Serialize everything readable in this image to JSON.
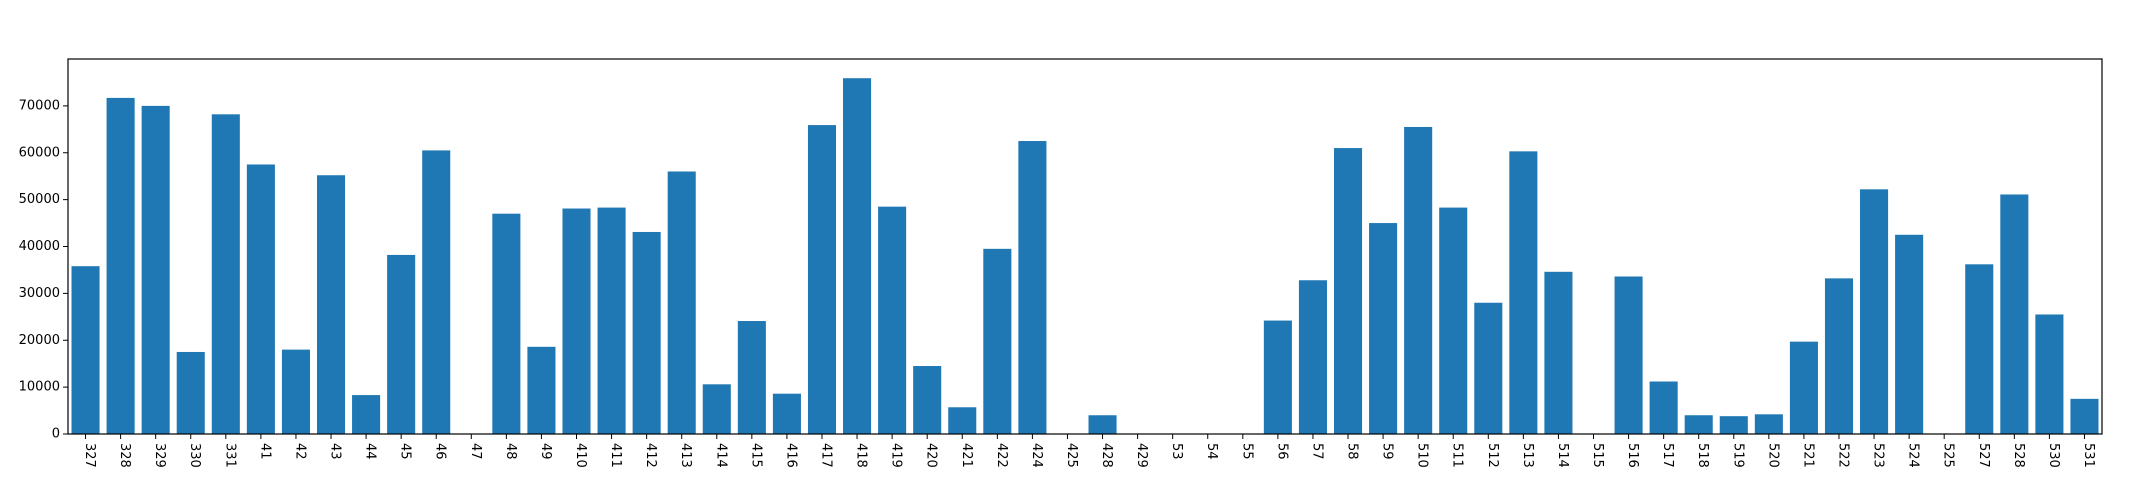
{
  "chart_data": {
    "type": "bar",
    "title": "",
    "xlabel": "",
    "ylabel": "",
    "ylim": [
      0,
      80000
    ],
    "yticks": [
      0,
      10000,
      20000,
      30000,
      40000,
      50000,
      60000,
      70000
    ],
    "ytick_labels": [
      "0",
      "10000",
      "20000",
      "30000",
      "40000",
      "50000",
      "60000",
      "70000"
    ],
    "grid": false,
    "legend": "none",
    "bar_color": "#1f77b4",
    "categories": [
      "327",
      "328",
      "329",
      "330",
      "331",
      "41",
      "42",
      "43",
      "44",
      "45",
      "46",
      "47",
      "48",
      "49",
      "410",
      "411",
      "412",
      "413",
      "414",
      "415",
      "416",
      "417",
      "418",
      "419",
      "420",
      "421",
      "422",
      "424",
      "425",
      "428",
      "429",
      "53",
      "54",
      "55",
      "56",
      "57",
      "58",
      "59",
      "510",
      "511",
      "512",
      "513",
      "514",
      "515",
      "516",
      "517",
      "518",
      "519",
      "520",
      "521",
      "522",
      "523",
      "524",
      "525",
      "527",
      "528",
      "530",
      "531"
    ],
    "values": [
      35800,
      71700,
      70000,
      17500,
      68200,
      57500,
      18000,
      55200,
      8300,
      38200,
      60500,
      0,
      47000,
      18600,
      48100,
      48300,
      43100,
      56000,
      10600,
      24100,
      8600,
      65900,
      75900,
      48500,
      14500,
      5700,
      39500,
      62500,
      0,
      4000,
      0,
      0,
      0,
      0,
      24200,
      32800,
      61000,
      45000,
      65500,
      48300,
      28000,
      60300,
      34600,
      0,
      33600,
      11200,
      4000,
      3800,
      4200,
      19700,
      33200,
      52200,
      42500,
      0,
      36200,
      51100,
      25500,
      7500
    ]
  }
}
